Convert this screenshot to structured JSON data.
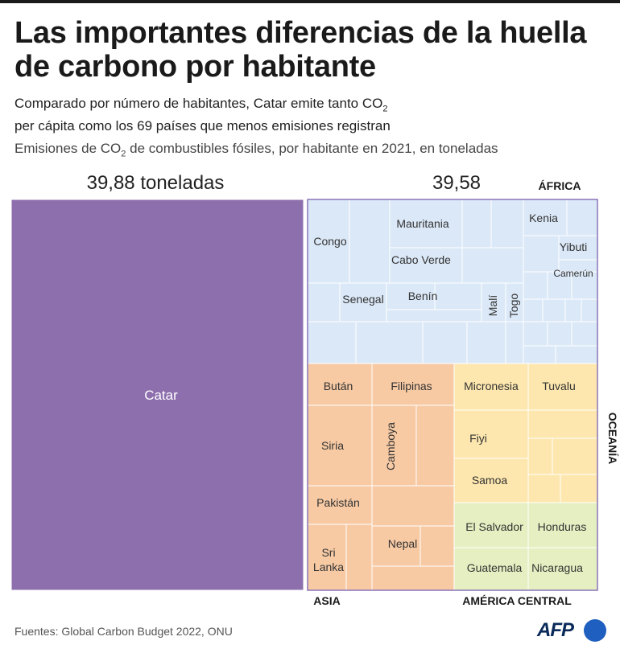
{
  "header": {
    "title": "Las importantes diferencias de la huella de carbono por habitante",
    "subtitle_a": "Comparado por número de habitantes, Catar emite tanto CO",
    "subtitle_sub": "2",
    "subtitle_b": "per cápita como los 69 países que menos emisiones registran",
    "measure_a": "Emisiones de CO",
    "measure_sub": "2",
    "measure_b": " de combustibles fósiles, por habitante en 2021, en toneladas"
  },
  "chart_data": {
    "type": "treemap",
    "colors": {
      "qatar": "#8d6fae",
      "africa": "#dbe8f7",
      "asia": "#f7caa4",
      "oceania": "#fde7ae",
      "america_central": "#e6efc2",
      "group_outline": "#8a74b8",
      "cell_border": "#ffffff"
    },
    "totals": [
      {
        "label": "39,88 toneladas",
        "value": 39.88
      },
      {
        "label": "39,58",
        "value": 39.58
      }
    ],
    "qatar": {
      "label": "Catar",
      "value": 39.88
    },
    "regions": [
      {
        "name": "ÁFRICA",
        "countries": [
          "Congo",
          "Mauritania",
          "Cabo Verde",
          "Senegal",
          "Benín",
          "Malí",
          "Togo",
          "Kenia",
          "Yibuti",
          "Camerún"
        ]
      },
      {
        "name": "ASIA",
        "countries": [
          "Bután",
          "Filipinas",
          "Siria",
          "Camboya",
          "Pakistán",
          "Sri Lanka",
          "Nepal"
        ]
      },
      {
        "name": "OCEANÍA",
        "countries": [
          "Micronesia",
          "Tuvalu",
          "Fiyi",
          "Samoa"
        ]
      },
      {
        "name": "AMÉRICA CENTRAL",
        "countries": [
          "El Salvador",
          "Honduras",
          "Guatemala",
          "Nicaragua"
        ]
      }
    ]
  },
  "footer": {
    "source": "Fuentes: Global Carbon Budget 2022, ONU",
    "logo": "AFP"
  }
}
